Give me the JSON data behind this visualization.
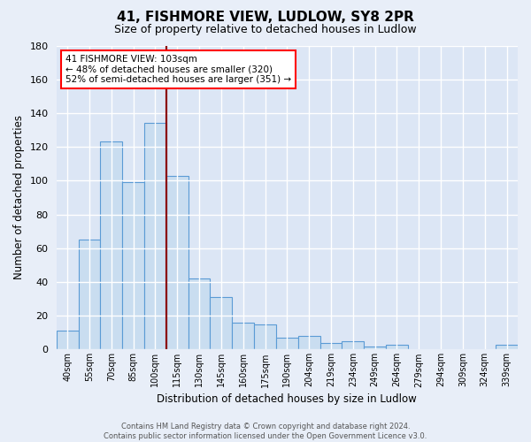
{
  "title": "41, FISHMORE VIEW, LUDLOW, SY8 2PR",
  "subtitle": "Size of property relative to detached houses in Ludlow",
  "xlabel": "Distribution of detached houses by size in Ludlow",
  "ylabel": "Number of detached properties",
  "bar_labels": [
    "40sqm",
    "55sqm",
    "70sqm",
    "85sqm",
    "100sqm",
    "115sqm",
    "130sqm",
    "145sqm",
    "160sqm",
    "175sqm",
    "190sqm",
    "204sqm",
    "219sqm",
    "234sqm",
    "249sqm",
    "264sqm",
    "279sqm",
    "294sqm",
    "309sqm",
    "324sqm",
    "339sqm"
  ],
  "bar_values": [
    11,
    65,
    123,
    99,
    134,
    103,
    42,
    31,
    16,
    15,
    7,
    8,
    4,
    5,
    2,
    3,
    0,
    0,
    0,
    0,
    3
  ],
  "bar_color": "#c9ddf0",
  "bar_edge_color": "#5b9bd5",
  "vline_x_index": 5,
  "vline_color": "#8b0000",
  "ylim": [
    0,
    180
  ],
  "yticks": [
    0,
    20,
    40,
    60,
    80,
    100,
    120,
    140,
    160,
    180
  ],
  "annotation_title": "41 FISHMORE VIEW: 103sqm",
  "annotation_line1": "← 48% of detached houses are smaller (320)",
  "annotation_line2": "52% of semi-detached houses are larger (351) →",
  "footer_line1": "Contains HM Land Registry data © Crown copyright and database right 2024.",
  "footer_line2": "Contains public sector information licensed under the Open Government Licence v3.0.",
  "background_color": "#e8eef8",
  "grid_color": "white",
  "plot_bg_color": "#dce6f5"
}
